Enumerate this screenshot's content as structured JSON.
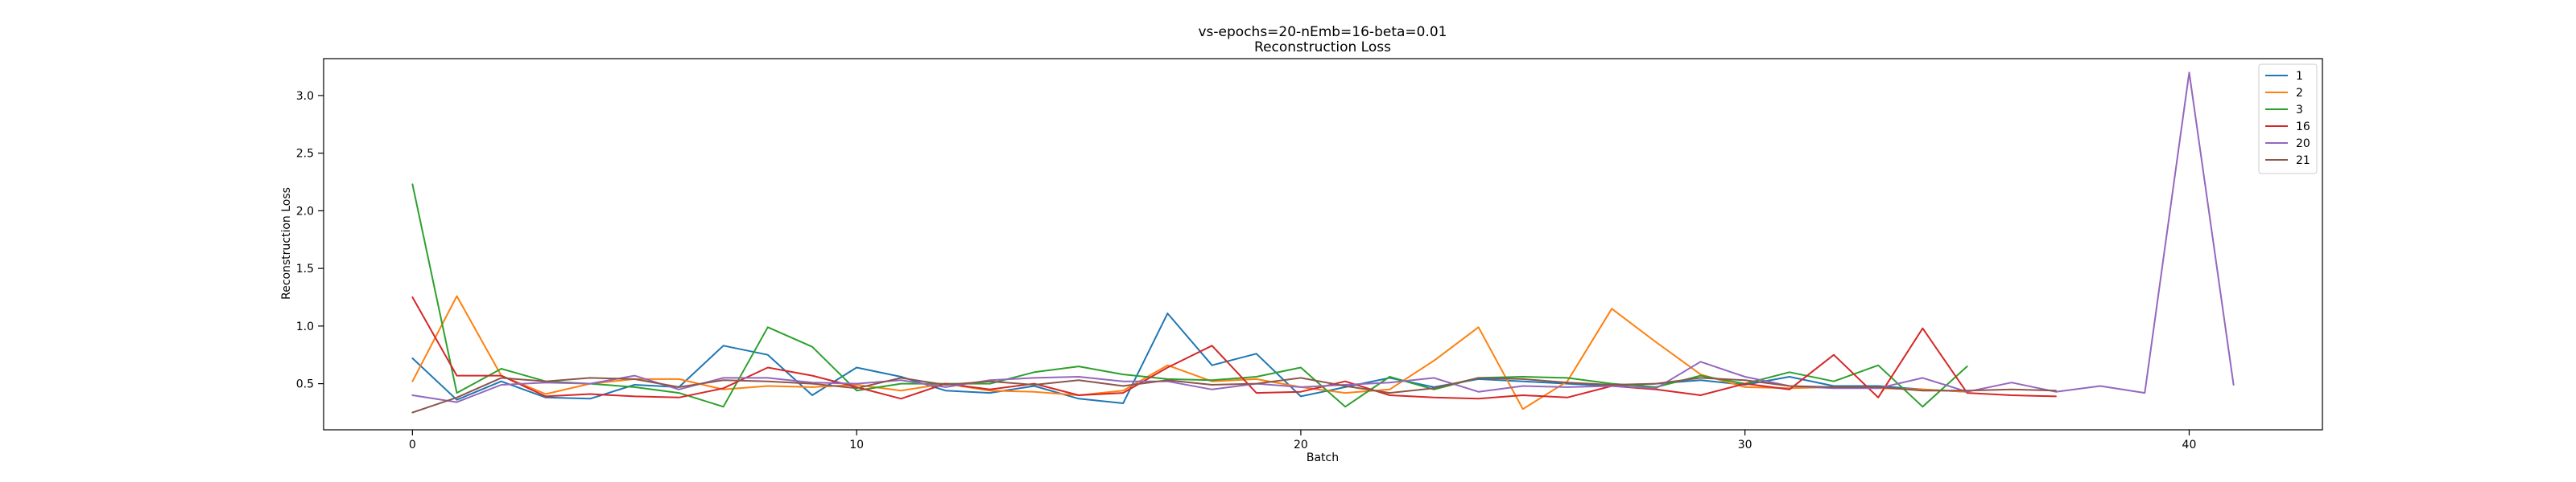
{
  "chart_data": {
    "type": "line",
    "title": "vs-epochs=20-nEmb=16-beta=0.01",
    "subtitle": "Reconstruction Loss",
    "xlabel": "Batch",
    "ylabel": "Reconstruction Loss",
    "xlim": [
      -2,
      43
    ],
    "ylim": [
      0.1,
      3.32
    ],
    "xticks": [
      0,
      10,
      20,
      30,
      40
    ],
    "yticks": [
      0.5,
      1.0,
      1.5,
      2.0,
      2.5,
      3.0
    ],
    "ytick_labels": [
      "0.5",
      "1.0",
      "1.5",
      "2.0",
      "2.5",
      "3.0"
    ],
    "legend_position": "top-right",
    "grid": false,
    "series": [
      {
        "name": "1",
        "color": "#1f77b4",
        "values": [
          0.72,
          0.36,
          0.52,
          0.38,
          0.37,
          0.49,
          0.47,
          0.83,
          0.75,
          0.4,
          0.64,
          0.56,
          0.44,
          0.42,
          0.48,
          0.37,
          0.33,
          1.11,
          0.66,
          0.76,
          0.39,
          0.47,
          0.55,
          0.47,
          0.54,
          0.52,
          0.5,
          0.48,
          0.5,
          0.53,
          0.49,
          0.56,
          0.48,
          0.48,
          0.45,
          0.43
        ]
      },
      {
        "name": "2",
        "color": "#ff7f0e",
        "values": [
          0.52,
          1.26,
          0.57,
          0.41,
          0.5,
          0.54,
          0.54,
          0.45,
          0.48,
          0.47,
          0.49,
          0.44,
          0.5,
          0.44,
          0.43,
          0.4,
          0.44,
          0.66,
          0.52,
          0.54,
          0.47,
          0.42,
          0.45,
          0.7,
          0.99,
          0.28,
          0.52,
          1.15,
          0.86,
          0.58,
          0.47,
          0.46,
          0.47,
          0.46,
          0.45,
          0.43
        ]
      },
      {
        "name": "3",
        "color": "#2ca02c",
        "values": [
          2.23,
          0.42,
          0.63,
          0.52,
          0.5,
          0.47,
          0.42,
          0.3,
          0.99,
          0.82,
          0.44,
          0.5,
          0.5,
          0.5,
          0.6,
          0.65,
          0.58,
          0.54,
          0.53,
          0.56,
          0.64,
          0.3,
          0.56,
          0.45,
          0.55,
          0.56,
          0.55,
          0.5,
          0.47,
          0.57,
          0.5,
          0.6,
          0.52,
          0.66,
          0.3,
          0.65
        ]
      },
      {
        "name": "16",
        "color": "#d62728",
        "values": [
          1.25,
          0.57,
          0.57,
          0.39,
          0.41,
          0.39,
          0.38,
          0.46,
          0.64,
          0.57,
          0.47,
          0.37,
          0.5,
          0.45,
          0.5,
          0.4,
          0.42,
          0.64,
          0.83,
          0.42,
          0.43,
          0.52,
          0.4,
          0.38,
          0.37,
          0.4,
          0.38,
          0.48,
          0.45,
          0.4,
          0.5,
          0.45,
          0.75,
          0.38,
          0.98,
          0.42,
          0.4,
          0.39
        ]
      },
      {
        "name": "20",
        "color": "#9467bd",
        "values": [
          0.4,
          0.34,
          0.49,
          0.51,
          0.5,
          0.57,
          0.45,
          0.55,
          0.55,
          0.51,
          0.5,
          0.53,
          0.47,
          0.53,
          0.55,
          0.56,
          0.52,
          0.52,
          0.45,
          0.5,
          0.47,
          0.49,
          0.51,
          0.55,
          0.43,
          0.48,
          0.47,
          0.48,
          0.46,
          0.69,
          0.56,
          0.48,
          0.46,
          0.46,
          0.55,
          0.43,
          0.51,
          0.43,
          0.48,
          0.42,
          3.2,
          0.49
        ]
      },
      {
        "name": "21",
        "color": "#8c564b",
        "values": [
          0.25,
          0.38,
          0.55,
          0.52,
          0.55,
          0.54,
          0.47,
          0.53,
          0.52,
          0.5,
          0.46,
          0.55,
          0.49,
          0.52,
          0.49,
          0.53,
          0.48,
          0.53,
          0.49,
          0.5,
          0.55,
          0.48,
          0.42,
          0.46,
          0.55,
          0.54,
          0.51,
          0.49,
          0.5,
          0.55,
          0.53,
          0.48,
          0.47,
          0.47,
          0.44,
          0.44,
          0.45,
          0.44
        ]
      }
    ]
  }
}
